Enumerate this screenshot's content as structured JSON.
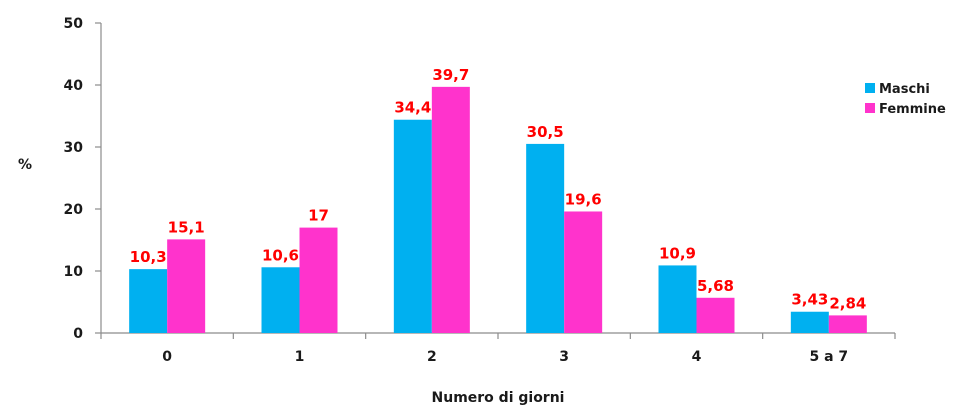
{
  "chart_data": {
    "type": "bar",
    "title": "",
    "xlabel": "Numero di giorni",
    "ylabel": "%",
    "ylim": [
      0,
      50
    ],
    "yticks": [
      "0",
      "10",
      "20",
      "30",
      "40",
      "50"
    ],
    "categories": [
      "0",
      "1",
      "2",
      "3",
      "4",
      "5 a 7"
    ],
    "legend_position": "right",
    "grid": false,
    "series": [
      {
        "name": "Maschi",
        "color": "#00b0f0",
        "values": [
          10.3,
          10.6,
          34.4,
          30.5,
          10.9,
          3.43
        ],
        "labels": [
          "10,3",
          "10,6",
          "34,4",
          "30,5",
          "10,9",
          "3,43"
        ]
      },
      {
        "name": "Femmine",
        "color": "#ff33cc",
        "values": [
          15.1,
          17,
          39.7,
          19.6,
          5.68,
          2.84
        ],
        "labels": [
          "15,1",
          "17",
          "39,7",
          "19,6",
          "5,68",
          "2,84"
        ]
      }
    ],
    "label_color": "#ff0000"
  }
}
